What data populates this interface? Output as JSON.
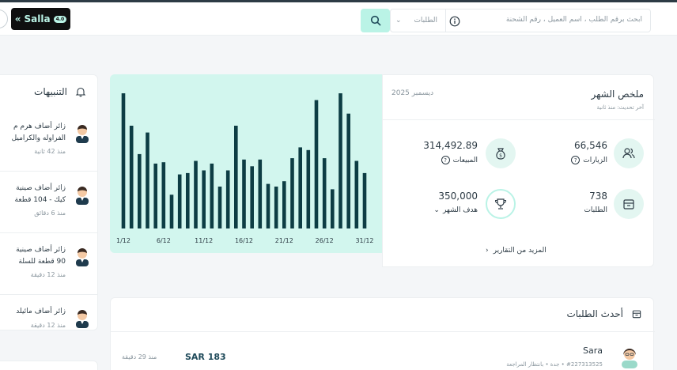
{
  "topbar": {
    "logo_text": "Salla",
    "logo_badge": "4.0",
    "search_placeholder": "ابحث برقم الطلب ، اسم العميل ، رقم الشحنة",
    "search_scope": "الطلبات"
  },
  "notifications": {
    "title": "التنبيهات",
    "items": [
      {
        "line1": "زائر أضاف هرم م",
        "line2": "الفراوله والكراميل",
        "time": "منذ 42 ثانية"
      },
      {
        "line1": "زائر أضاف صينية",
        "line2": "كيك - 104 قطعة",
        "time": "منذ 6 دقائق"
      },
      {
        "line1": "زائر أضاف صينية",
        "line2": "90 قطعة للسلة",
        "time": "منذ 12 دقيقة"
      },
      {
        "line1": "زائر أضاف مائيلد",
        "line2": "",
        "time": "منذ 12 دقيقة"
      }
    ]
  },
  "summary": {
    "title": "ملخص الشهر",
    "subtitle": "آخر تحديث: منذ ثانية",
    "month": "ديسمبر 2025",
    "visits": {
      "value": "66,546",
      "label": "الزيارات"
    },
    "sales": {
      "value": "314,492.89",
      "label": "المبيعات"
    },
    "orders": {
      "value": "738",
      "label": "الطلبات"
    },
    "target": {
      "value": "350,000",
      "label": "هدف الشهر"
    },
    "more_link": "المزيد من التقارير"
  },
  "chart_data": {
    "type": "bar",
    "title": "",
    "xlabel": "",
    "ylabel": "",
    "categories": [
      "1/12",
      "2/12",
      "3/12",
      "4/12",
      "5/12",
      "6/12",
      "7/12",
      "8/12",
      "9/12",
      "10/12",
      "11/12",
      "12/12",
      "13/12",
      "14/12",
      "15/12",
      "16/12",
      "17/12",
      "18/12",
      "19/12",
      "20/12",
      "21/12",
      "22/12",
      "23/12",
      "24/12",
      "25/12",
      "26/12",
      "27/12",
      "28/12",
      "29/12",
      "30/12",
      "31/12"
    ],
    "values": [
      100,
      76,
      55,
      71,
      48,
      49,
      25,
      40,
      41,
      50,
      43,
      48,
      31,
      43,
      76,
      51,
      46,
      51,
      33,
      31,
      35,
      52,
      60,
      58,
      95,
      52,
      29,
      100,
      85,
      50,
      41
    ],
    "tick_labels": [
      "1/12",
      "6/12",
      "11/12",
      "16/12",
      "21/12",
      "26/12",
      "31/12"
    ],
    "ylim": [
      0,
      100
    ],
    "colors": {
      "bar": "#0d3d44",
      "background": "#d2f6ee"
    }
  },
  "orders": {
    "title": "أحدث الطلبات",
    "rows": [
      {
        "name": "Sara",
        "meta": "#227313525 • جدة • بانتظار المراجعة",
        "amount": "SAR 183",
        "ago": "منذ 29 دقيقة"
      }
    ]
  }
}
